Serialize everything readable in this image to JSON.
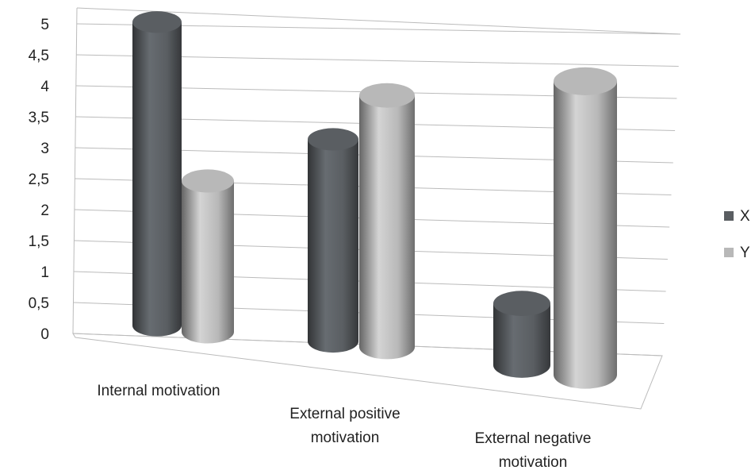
{
  "chart_data": {
    "type": "bar3d-cylinder",
    "categories": [
      "Internal motivation",
      "External positive motivation",
      "External negative motivation"
    ],
    "series": [
      {
        "name": "X",
        "color": "#5a5e62",
        "values": [
          4.9,
          3.1,
          0.9
        ]
      },
      {
        "name": "Y",
        "color": "#b8b8b8",
        "values": [
          2.4,
          3.8,
          4.2
        ]
      }
    ],
    "ylim": [
      0,
      5
    ],
    "yticks": [
      0,
      {
        "value": 0.5,
        "label": "0,5"
      },
      1,
      {
        "value": 1.5,
        "label": "1,5"
      },
      2,
      {
        "value": 2.5,
        "label": "2,5"
      },
      3,
      {
        "value": 3.5,
        "label": "3,5"
      },
      4,
      {
        "value": 4.5,
        "label": "4,5"
      },
      5
    ],
    "grid": true,
    "legend": "right"
  }
}
